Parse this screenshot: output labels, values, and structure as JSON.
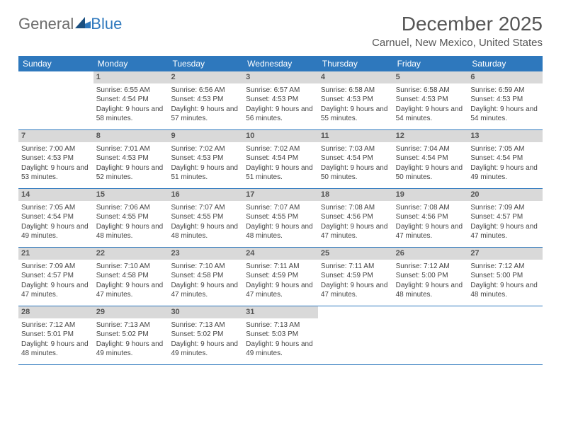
{
  "logo": {
    "text1": "General",
    "text2": "Blue"
  },
  "title": "December 2025",
  "subtitle": "Carnuel, New Mexico, United States",
  "colors": {
    "header_bg": "#2e78bd",
    "header_text": "#ffffff",
    "daynum_bg": "#d9d9d9",
    "week_border": "#2e78bd",
    "body_text": "#444444",
    "page_bg": "#ffffff"
  },
  "typography": {
    "title_fontsize": 28,
    "subtitle_fontsize": 15,
    "dow_fontsize": 12,
    "cell_fontsize": 10
  },
  "dow": [
    "Sunday",
    "Monday",
    "Tuesday",
    "Wednesday",
    "Thursday",
    "Friday",
    "Saturday"
  ],
  "weeks": [
    [
      {
        "n": "",
        "sr": "",
        "ss": "",
        "dl": ""
      },
      {
        "n": "1",
        "sr": "Sunrise: 6:55 AM",
        "ss": "Sunset: 4:54 PM",
        "dl": "Daylight: 9 hours and 58 minutes."
      },
      {
        "n": "2",
        "sr": "Sunrise: 6:56 AM",
        "ss": "Sunset: 4:53 PM",
        "dl": "Daylight: 9 hours and 57 minutes."
      },
      {
        "n": "3",
        "sr": "Sunrise: 6:57 AM",
        "ss": "Sunset: 4:53 PM",
        "dl": "Daylight: 9 hours and 56 minutes."
      },
      {
        "n": "4",
        "sr": "Sunrise: 6:58 AM",
        "ss": "Sunset: 4:53 PM",
        "dl": "Daylight: 9 hours and 55 minutes."
      },
      {
        "n": "5",
        "sr": "Sunrise: 6:58 AM",
        "ss": "Sunset: 4:53 PM",
        "dl": "Daylight: 9 hours and 54 minutes."
      },
      {
        "n": "6",
        "sr": "Sunrise: 6:59 AM",
        "ss": "Sunset: 4:53 PM",
        "dl": "Daylight: 9 hours and 54 minutes."
      }
    ],
    [
      {
        "n": "7",
        "sr": "Sunrise: 7:00 AM",
        "ss": "Sunset: 4:53 PM",
        "dl": "Daylight: 9 hours and 53 minutes."
      },
      {
        "n": "8",
        "sr": "Sunrise: 7:01 AM",
        "ss": "Sunset: 4:53 PM",
        "dl": "Daylight: 9 hours and 52 minutes."
      },
      {
        "n": "9",
        "sr": "Sunrise: 7:02 AM",
        "ss": "Sunset: 4:53 PM",
        "dl": "Daylight: 9 hours and 51 minutes."
      },
      {
        "n": "10",
        "sr": "Sunrise: 7:02 AM",
        "ss": "Sunset: 4:54 PM",
        "dl": "Daylight: 9 hours and 51 minutes."
      },
      {
        "n": "11",
        "sr": "Sunrise: 7:03 AM",
        "ss": "Sunset: 4:54 PM",
        "dl": "Daylight: 9 hours and 50 minutes."
      },
      {
        "n": "12",
        "sr": "Sunrise: 7:04 AM",
        "ss": "Sunset: 4:54 PM",
        "dl": "Daylight: 9 hours and 50 minutes."
      },
      {
        "n": "13",
        "sr": "Sunrise: 7:05 AM",
        "ss": "Sunset: 4:54 PM",
        "dl": "Daylight: 9 hours and 49 minutes."
      }
    ],
    [
      {
        "n": "14",
        "sr": "Sunrise: 7:05 AM",
        "ss": "Sunset: 4:54 PM",
        "dl": "Daylight: 9 hours and 49 minutes."
      },
      {
        "n": "15",
        "sr": "Sunrise: 7:06 AM",
        "ss": "Sunset: 4:55 PM",
        "dl": "Daylight: 9 hours and 48 minutes."
      },
      {
        "n": "16",
        "sr": "Sunrise: 7:07 AM",
        "ss": "Sunset: 4:55 PM",
        "dl": "Daylight: 9 hours and 48 minutes."
      },
      {
        "n": "17",
        "sr": "Sunrise: 7:07 AM",
        "ss": "Sunset: 4:55 PM",
        "dl": "Daylight: 9 hours and 48 minutes."
      },
      {
        "n": "18",
        "sr": "Sunrise: 7:08 AM",
        "ss": "Sunset: 4:56 PM",
        "dl": "Daylight: 9 hours and 47 minutes."
      },
      {
        "n": "19",
        "sr": "Sunrise: 7:08 AM",
        "ss": "Sunset: 4:56 PM",
        "dl": "Daylight: 9 hours and 47 minutes."
      },
      {
        "n": "20",
        "sr": "Sunrise: 7:09 AM",
        "ss": "Sunset: 4:57 PM",
        "dl": "Daylight: 9 hours and 47 minutes."
      }
    ],
    [
      {
        "n": "21",
        "sr": "Sunrise: 7:09 AM",
        "ss": "Sunset: 4:57 PM",
        "dl": "Daylight: 9 hours and 47 minutes."
      },
      {
        "n": "22",
        "sr": "Sunrise: 7:10 AM",
        "ss": "Sunset: 4:58 PM",
        "dl": "Daylight: 9 hours and 47 minutes."
      },
      {
        "n": "23",
        "sr": "Sunrise: 7:10 AM",
        "ss": "Sunset: 4:58 PM",
        "dl": "Daylight: 9 hours and 47 minutes."
      },
      {
        "n": "24",
        "sr": "Sunrise: 7:11 AM",
        "ss": "Sunset: 4:59 PM",
        "dl": "Daylight: 9 hours and 47 minutes."
      },
      {
        "n": "25",
        "sr": "Sunrise: 7:11 AM",
        "ss": "Sunset: 4:59 PM",
        "dl": "Daylight: 9 hours and 47 minutes."
      },
      {
        "n": "26",
        "sr": "Sunrise: 7:12 AM",
        "ss": "Sunset: 5:00 PM",
        "dl": "Daylight: 9 hours and 48 minutes."
      },
      {
        "n": "27",
        "sr": "Sunrise: 7:12 AM",
        "ss": "Sunset: 5:00 PM",
        "dl": "Daylight: 9 hours and 48 minutes."
      }
    ],
    [
      {
        "n": "28",
        "sr": "Sunrise: 7:12 AM",
        "ss": "Sunset: 5:01 PM",
        "dl": "Daylight: 9 hours and 48 minutes."
      },
      {
        "n": "29",
        "sr": "Sunrise: 7:13 AM",
        "ss": "Sunset: 5:02 PM",
        "dl": "Daylight: 9 hours and 49 minutes."
      },
      {
        "n": "30",
        "sr": "Sunrise: 7:13 AM",
        "ss": "Sunset: 5:02 PM",
        "dl": "Daylight: 9 hours and 49 minutes."
      },
      {
        "n": "31",
        "sr": "Sunrise: 7:13 AM",
        "ss": "Sunset: 5:03 PM",
        "dl": "Daylight: 9 hours and 49 minutes."
      },
      {
        "n": "",
        "sr": "",
        "ss": "",
        "dl": ""
      },
      {
        "n": "",
        "sr": "",
        "ss": "",
        "dl": ""
      },
      {
        "n": "",
        "sr": "",
        "ss": "",
        "dl": ""
      }
    ]
  ]
}
